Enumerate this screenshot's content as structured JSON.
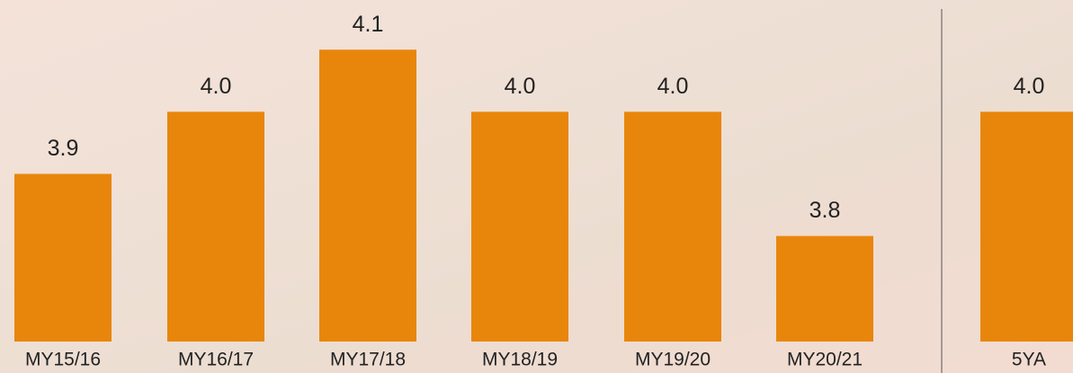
{
  "chart_data": {
    "type": "bar",
    "categories": [
      "MY15/16",
      "MY16/17",
      "MY17/18",
      "MY18/19",
      "MY19/20",
      "MY20/21",
      "5YA"
    ],
    "values": [
      3.9,
      4,
      4.1,
      4,
      4,
      3.8,
      4
    ],
    "value_labels": [
      "3.9",
      "4.0",
      "4.1",
      "4.0",
      "4.0",
      "3.8",
      "4.0"
    ],
    "color": "#e8860b",
    "ylim": [
      3.63,
      4.18
    ]
  }
}
